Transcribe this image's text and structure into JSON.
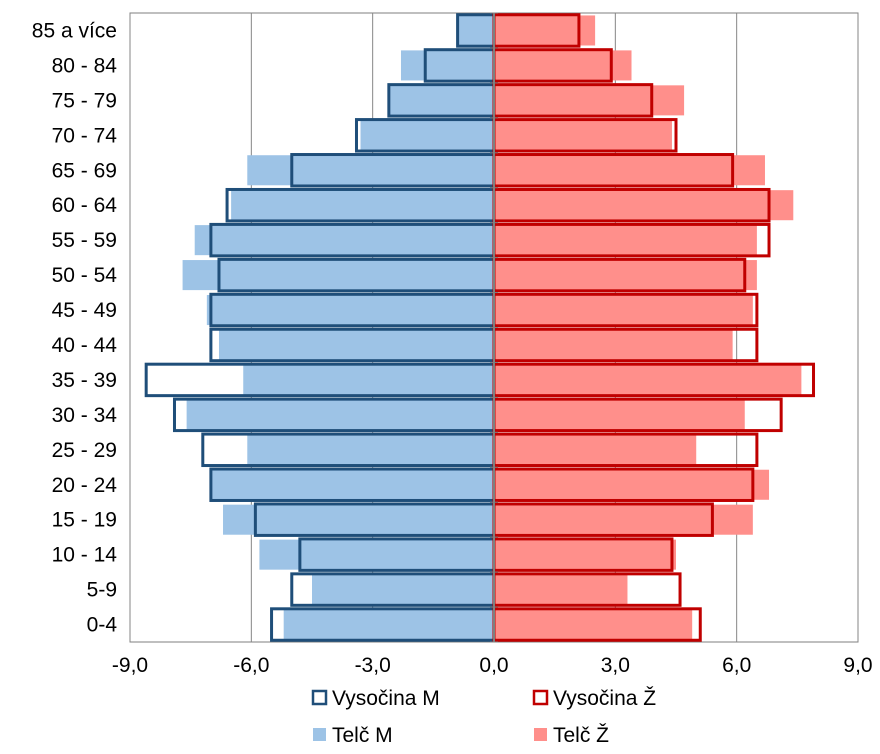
{
  "chart_data": {
    "type": "bar",
    "orientation": "horizontal",
    "title": "",
    "xlabel": "",
    "ylabel": "",
    "xlim": [
      -9,
      9
    ],
    "xticks": [
      -9,
      -6,
      -3,
      0,
      3,
      6,
      9
    ],
    "xtick_labels": [
      "-9,0",
      "-6,0",
      "-3,0",
      "0,0",
      "3,0",
      "6,0",
      "9,0"
    ],
    "grid": "vertical",
    "legend_position": "bottom",
    "categories": [
      "0-4",
      "5-9",
      "10 - 14",
      "15 - 19",
      "20 - 24",
      "25 - 29",
      "30 - 34",
      "35 - 39",
      "40 - 44",
      "45 - 49",
      "50 - 54",
      "55 - 59",
      "60 - 64",
      "65 - 69",
      "70 - 74",
      "75 - 79",
      "80 - 84",
      "85 a více"
    ],
    "series": [
      {
        "name": "Telč M",
        "style": "filled",
        "color": "#9DC3E6",
        "values": [
          -5.2,
          -4.5,
          -5.8,
          -6.7,
          -7.0,
          -6.1,
          -7.6,
          -6.2,
          -6.8,
          -7.1,
          -7.7,
          -7.4,
          -6.5,
          -6.1,
          -3.3,
          -2.6,
          -2.3,
          -0.9
        ]
      },
      {
        "name": "Vysočina M",
        "style": "outline",
        "color": "#1F4E79",
        "values": [
          -5.5,
          -5.0,
          -4.8,
          -5.9,
          -7.0,
          -7.2,
          -7.9,
          -8.6,
          -7.0,
          -7.0,
          -6.8,
          -7.0,
          -6.6,
          -5.0,
          -3.4,
          -2.6,
          -1.7,
          -0.9
        ]
      },
      {
        "name": "Telč Ž",
        "style": "filled",
        "color": "#FF8F8B",
        "values": [
          4.9,
          3.3,
          4.5,
          6.4,
          6.8,
          5.0,
          6.2,
          7.6,
          5.9,
          6.4,
          6.5,
          6.5,
          7.4,
          6.7,
          4.4,
          4.7,
          3.4,
          2.5
        ]
      },
      {
        "name": "Vysočina Ž",
        "style": "outline",
        "color": "#C00000",
        "values": [
          5.1,
          4.6,
          4.4,
          5.4,
          6.4,
          6.5,
          7.1,
          7.9,
          6.5,
          6.5,
          6.2,
          6.8,
          6.8,
          5.9,
          4.5,
          3.9,
          2.9,
          2.1
        ]
      }
    ]
  }
}
